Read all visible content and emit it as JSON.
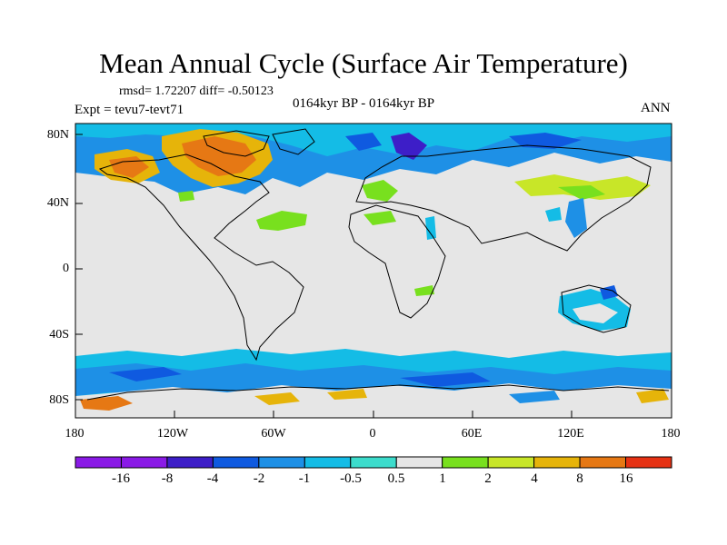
{
  "title": "Mean Annual Cycle (Surface Air Temperature)",
  "stats": "rmsd= 1.72207 diff= -0.50123",
  "expt": "Expt = tevu7-tevt71",
  "period": "0164kyr BP - 0164kyr BP",
  "season": "ANN",
  "lat_labels": [
    "80N",
    "40N",
    "0",
    "40S",
    "80S"
  ],
  "lon_labels": [
    "180",
    "120W",
    "60W",
    "0",
    "60E",
    "120E",
    "180"
  ],
  "colorbar": {
    "labels": [
      "-16",
      "-8",
      "-4",
      "-2",
      "-1",
      "-0.5",
      "0.5",
      "1",
      "2",
      "4",
      "8",
      "16"
    ],
    "colors": [
      "#8a1ae6",
      "#3d1ec8",
      "#0f5ae0",
      "#1e90e6",
      "#14bce6",
      "#3cdccc",
      "#e6e6e6",
      "#78e01e",
      "#c8e628",
      "#e6b40a",
      "#e67814",
      "#e63214"
    ]
  },
  "background_color": "#e6e6e6"
}
